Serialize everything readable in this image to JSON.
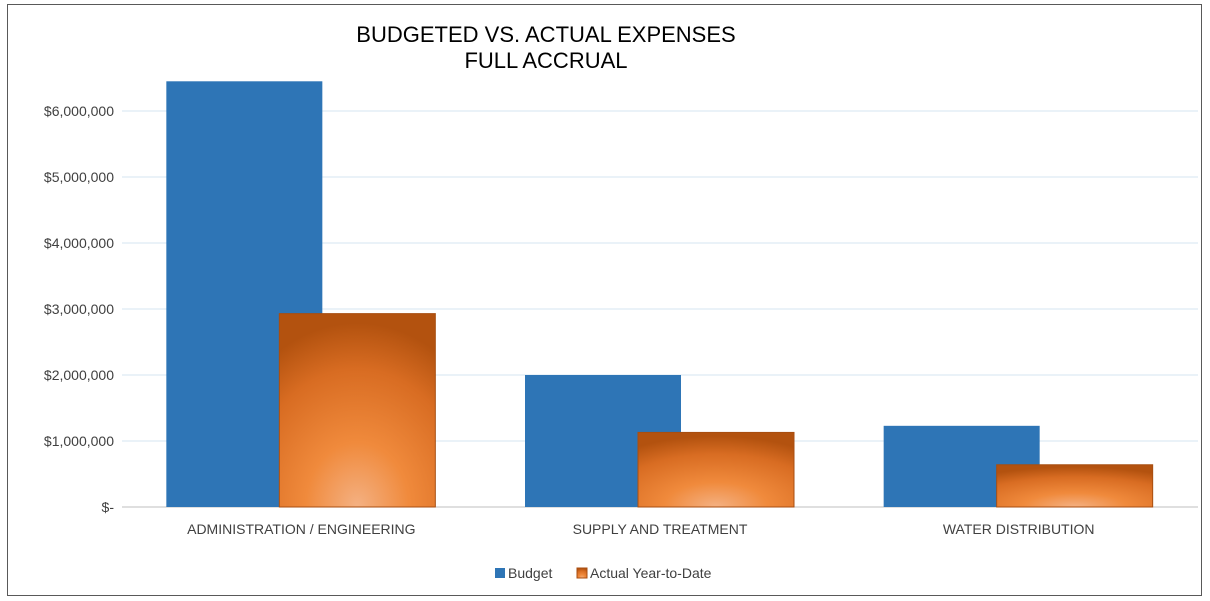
{
  "chart_data": {
    "type": "bar",
    "title": [
      "BUDGETED VS. ACTUAL EXPENSES",
      "FULL ACCRUAL"
    ],
    "categories": [
      "ADMINISTRATION / ENGINEERING",
      "SUPPLY AND TREATMENT",
      "WATER DISTRIBUTION"
    ],
    "series": [
      {
        "name": "Budget",
        "values": [
          6450000,
          2000000,
          1230000
        ],
        "color": "#2E75B6"
      },
      {
        "name": "Actual Year-to-Date",
        "values": [
          2930000,
          1130000,
          640000
        ],
        "color": "#E8762C"
      }
    ],
    "ylim": [
      0,
      7000000
    ],
    "yticks": [
      0,
      1000000,
      2000000,
      3000000,
      4000000,
      5000000,
      6000000
    ],
    "ytick_labels": [
      "$-",
      "$1,000,000",
      "$2,000,000",
      "$3,000,000",
      "$4,000,000",
      "$5,000,000",
      "$6,000,000"
    ],
    "grid": true,
    "legend_position": "bottom"
  }
}
